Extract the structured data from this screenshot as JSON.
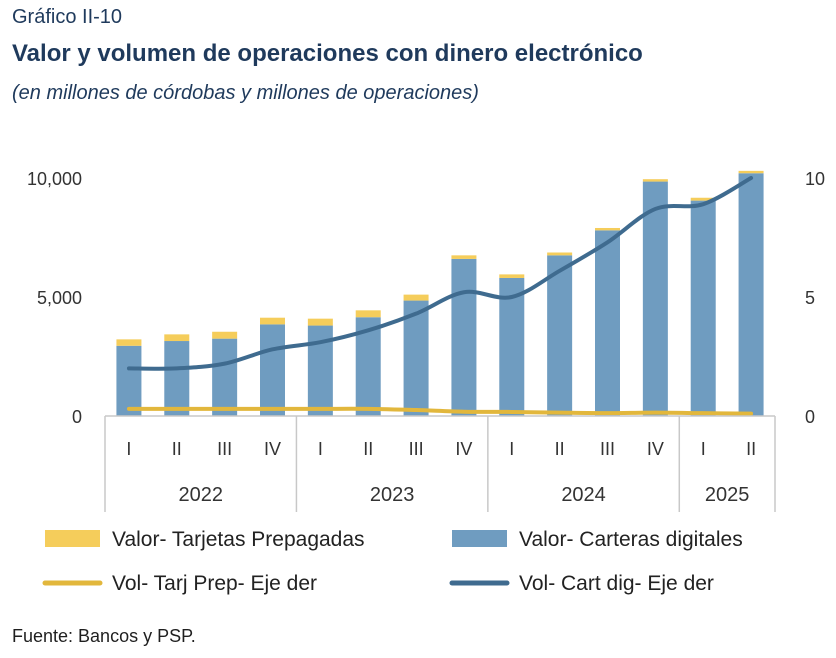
{
  "figure": {
    "number": "Gráfico II-10",
    "title": "Valor y volumen de operaciones con dinero electrónico",
    "subtitle": "(en millones de córdobas y millones de operaciones)",
    "source": "Fuente: Bancos y PSP."
  },
  "colors": {
    "prepaid_bar": "#f5cd5b",
    "wallet_bar": "#6f9cc0",
    "prepaid_line": "#e2b73c",
    "wallet_line": "#3f6b8f",
    "axis": "#c8c8c8"
  },
  "chart_data": {
    "type": "bar",
    "stacked": true,
    "categories": [
      "I",
      "II",
      "III",
      "IV",
      "I",
      "II",
      "III",
      "IV",
      "I",
      "II",
      "III",
      "IV",
      "I",
      "II"
    ],
    "groups": [
      {
        "label": "2022",
        "count": 4
      },
      {
        "label": "2023",
        "count": 4
      },
      {
        "label": "2024",
        "count": 4
      },
      {
        "label": "2025",
        "count": 2
      }
    ],
    "series": [
      {
        "name": "Valor- Carteras digitales",
        "kind": "bar",
        "axis": "left",
        "values": [
          2950,
          3150,
          3250,
          3850,
          3800,
          4150,
          4850,
          6600,
          5800,
          6750,
          7800,
          9850,
          9050,
          10200
        ]
      },
      {
        "name": "Valor- Tarjetas Prepagadas",
        "kind": "bar",
        "axis": "left",
        "values": [
          270,
          280,
          290,
          280,
          290,
          290,
          250,
          150,
          150,
          120,
          100,
          100,
          120,
          100
        ]
      },
      {
        "name": "Vol- Tarj Prep- Eje der",
        "kind": "line",
        "axis": "right",
        "values": [
          0.3,
          0.3,
          0.3,
          0.3,
          0.3,
          0.3,
          0.25,
          0.18,
          0.17,
          0.14,
          0.12,
          0.14,
          0.12,
          0.1
        ]
      },
      {
        "name": "Vol- Cart dig- Eje der",
        "kind": "line",
        "axis": "right",
        "values": [
          2.0,
          2.0,
          2.2,
          2.8,
          3.1,
          3.6,
          4.3,
          5.2,
          5.0,
          6.1,
          7.3,
          8.7,
          8.9,
          10.0
        ]
      }
    ],
    "left_axis": {
      "ticks": [
        "0",
        "5,000",
        "10,000"
      ],
      "ylim": [
        0,
        10000
      ]
    },
    "right_axis": {
      "ticks": [
        "0",
        "5",
        "10"
      ],
      "ylim": [
        0,
        10
      ]
    },
    "legend": [
      {
        "label": "Valor- Tarjetas Prepagadas",
        "symbol": "box",
        "color": "#f5cd5b"
      },
      {
        "label": "Valor- Carteras digitales",
        "symbol": "box",
        "color": "#6f9cc0"
      },
      {
        "label": "Vol- Tarj Prep- Eje der",
        "symbol": "line",
        "color": "#e2b73c"
      },
      {
        "label": "Vol- Cart dig- Eje der",
        "symbol": "line",
        "color": "#3f6b8f"
      }
    ],
    "legend_position": "bottom",
    "grid": false
  }
}
